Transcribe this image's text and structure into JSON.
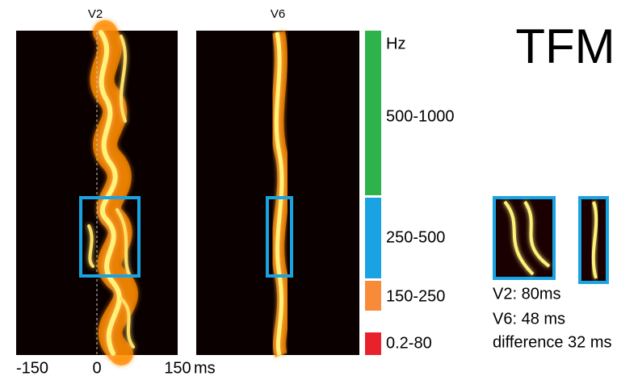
{
  "title": "TFM",
  "panels": [
    {
      "label": "V2"
    },
    {
      "label": "V6"
    }
  ],
  "x_axis": {
    "ticks": [
      "-150",
      "0",
      "150"
    ],
    "unit": "ms"
  },
  "bands": {
    "unit": "Hz",
    "items": [
      {
        "label": "500-1000",
        "color": "#2db34a"
      },
      {
        "label": "250-500",
        "color": "#1aa3e3"
      },
      {
        "label": "150-250",
        "color": "#f78b3a"
      },
      {
        "label": "0.2-80",
        "color": "#e8212b"
      }
    ]
  },
  "summary": [
    "V2: 80ms",
    "V6: 48 ms",
    "difference 32 ms"
  ]
}
